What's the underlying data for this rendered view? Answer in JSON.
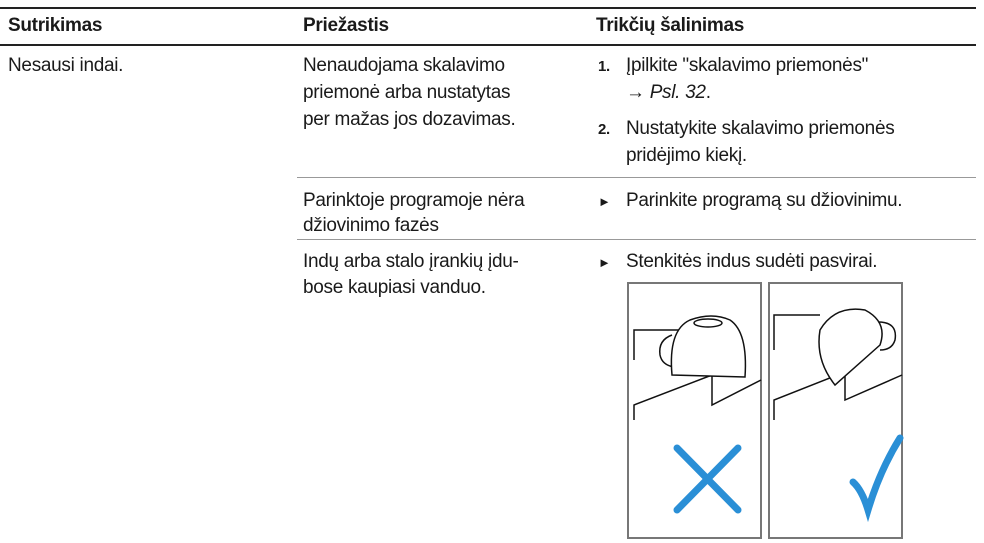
{
  "header": {
    "columns": [
      "Sutrikimas",
      "Priežastis",
      "Trikčių šalinimas"
    ]
  },
  "table": {
    "rows": [
      {
        "problem": "Nesausi indai.",
        "cause": [
          "Nenaudojama skalavimo",
          "priemonė arba nustatytas",
          "per mažas jos dozavimas."
        ],
        "remedy": [
          {
            "number": "1.",
            "lines": [
              "Įpilkite \"skalavimo priemonės\""
            ],
            "arrow": "→",
            "link": "Psl. 32",
            "end": "."
          },
          {
            "number": "2.",
            "lines": [
              "Nustatykite skalavimo priemonės",
              "pridėjimo kiekį."
            ]
          }
        ]
      },
      {
        "cause": [
          "Parinktoje programoje nėra",
          "džiovinimo fazės"
        ],
        "bullet": "►",
        "remedy": "Parinkite programą su džiovinimu."
      },
      {
        "cause": [
          "Indų arba stalo įrankių įdu-",
          "bose kaupiasi vanduo."
        ],
        "bullet": "►",
        "remedy": "Stenkitės indus sudėti pasvirai."
      }
    ]
  }
}
